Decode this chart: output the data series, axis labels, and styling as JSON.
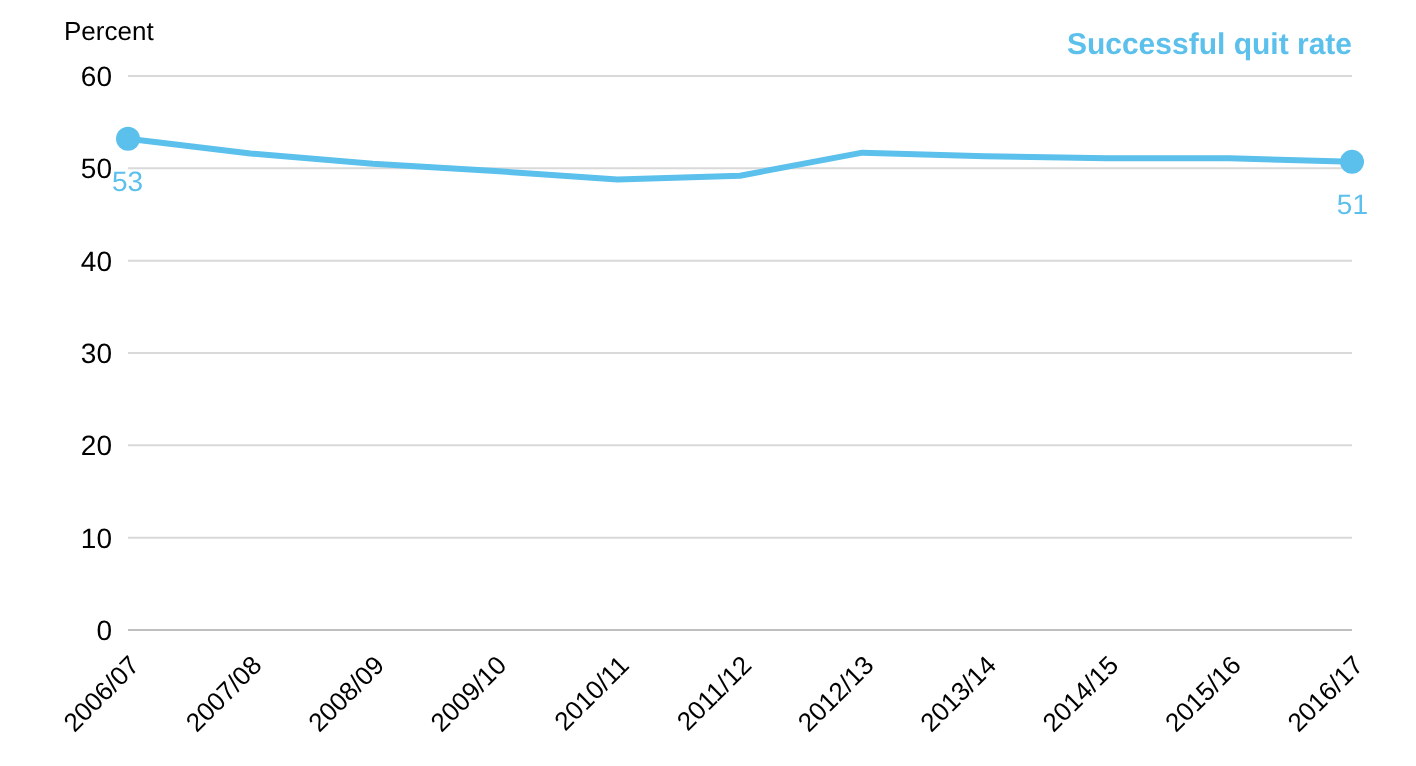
{
  "chart_data": {
    "type": "line",
    "ylabel": "Percent",
    "categories": [
      "2006/07",
      "2007/08",
      "2008/09",
      "2009/10",
      "2010/11",
      "2011/12",
      "2012/13",
      "2013/14",
      "2014/15",
      "2015/16",
      "2016/17"
    ],
    "series": [
      {
        "name": "Successful quit rate",
        "color": "#5bc0eb",
        "values": [
          53.2,
          51.6,
          50.5,
          49.7,
          48.8,
          49.2,
          51.7,
          51.3,
          51.1,
          51.1,
          50.7
        ],
        "value_labels": [
          "53",
          null,
          null,
          null,
          null,
          null,
          null,
          null,
          null,
          null,
          "51"
        ]
      }
    ],
    "ylim": [
      0,
      60
    ],
    "yticks": [
      0,
      10,
      20,
      30,
      40,
      50,
      60
    ],
    "grid": "y",
    "legend": "top right",
    "line_style": "solid"
  }
}
